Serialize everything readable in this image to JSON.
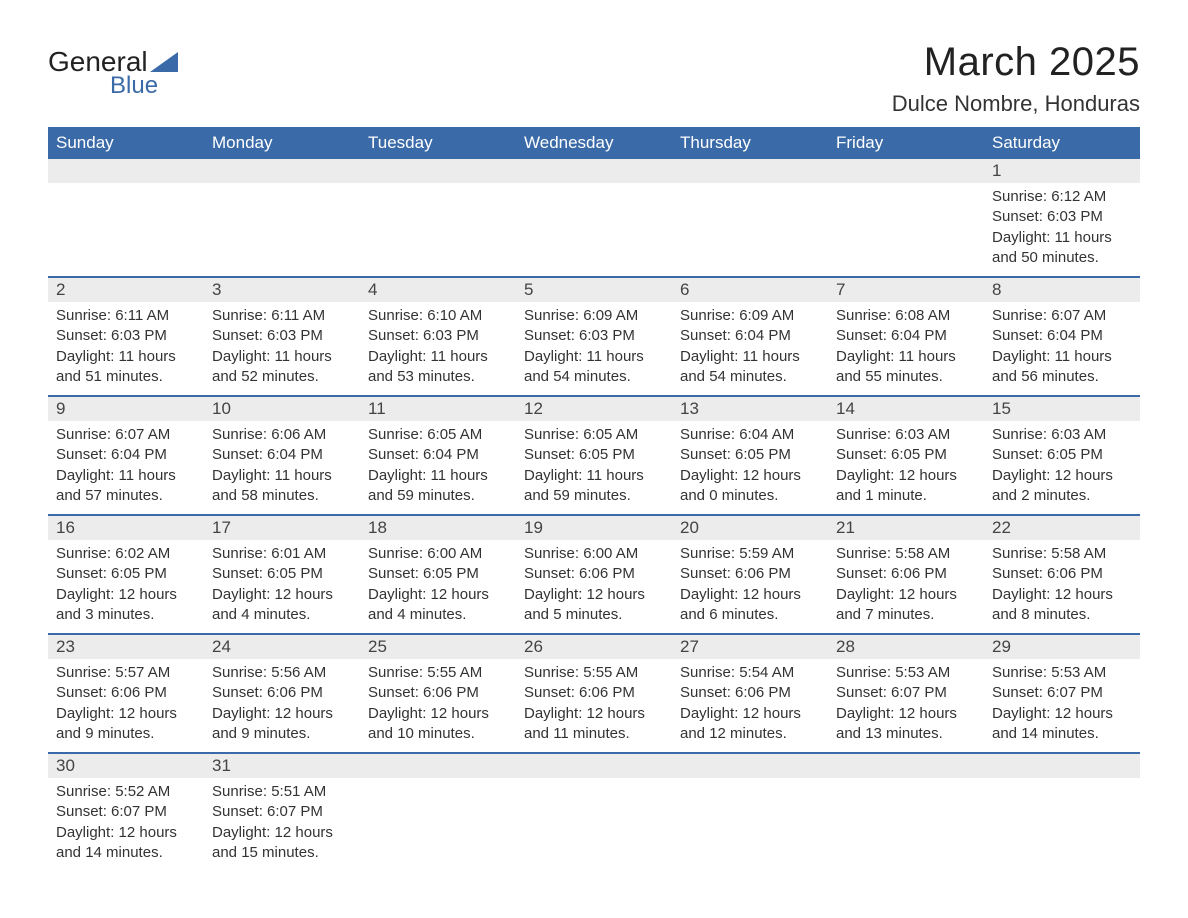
{
  "logo": {
    "line1": "General",
    "line2": "Blue"
  },
  "title": "March 2025",
  "location": "Dulce Nombre, Honduras",
  "colors": {
    "header_bg": "#3a6aa8",
    "header_text": "#ffffff",
    "daynum_bg": "#ececec",
    "border": "#3a6aa8",
    "body_text": "#333333"
  },
  "columns": [
    "Sunday",
    "Monday",
    "Tuesday",
    "Wednesday",
    "Thursday",
    "Friday",
    "Saturday"
  ],
  "weeks": [
    {
      "days": [
        null,
        null,
        null,
        null,
        null,
        null,
        {
          "n": "1",
          "sunrise": "6:12 AM",
          "sunset": "6:03 PM",
          "daylight": "11 hours and 50 minutes."
        }
      ]
    },
    {
      "days": [
        {
          "n": "2",
          "sunrise": "6:11 AM",
          "sunset": "6:03 PM",
          "daylight": "11 hours and 51 minutes."
        },
        {
          "n": "3",
          "sunrise": "6:11 AM",
          "sunset": "6:03 PM",
          "daylight": "11 hours and 52 minutes."
        },
        {
          "n": "4",
          "sunrise": "6:10 AM",
          "sunset": "6:03 PM",
          "daylight": "11 hours and 53 minutes."
        },
        {
          "n": "5",
          "sunrise": "6:09 AM",
          "sunset": "6:03 PM",
          "daylight": "11 hours and 54 minutes."
        },
        {
          "n": "6",
          "sunrise": "6:09 AM",
          "sunset": "6:04 PM",
          "daylight": "11 hours and 54 minutes."
        },
        {
          "n": "7",
          "sunrise": "6:08 AM",
          "sunset": "6:04 PM",
          "daylight": "11 hours and 55 minutes."
        },
        {
          "n": "8",
          "sunrise": "6:07 AM",
          "sunset": "6:04 PM",
          "daylight": "11 hours and 56 minutes."
        }
      ]
    },
    {
      "days": [
        {
          "n": "9",
          "sunrise": "6:07 AM",
          "sunset": "6:04 PM",
          "daylight": "11 hours and 57 minutes."
        },
        {
          "n": "10",
          "sunrise": "6:06 AM",
          "sunset": "6:04 PM",
          "daylight": "11 hours and 58 minutes."
        },
        {
          "n": "11",
          "sunrise": "6:05 AM",
          "sunset": "6:04 PM",
          "daylight": "11 hours and 59 minutes."
        },
        {
          "n": "12",
          "sunrise": "6:05 AM",
          "sunset": "6:05 PM",
          "daylight": "11 hours and 59 minutes."
        },
        {
          "n": "13",
          "sunrise": "6:04 AM",
          "sunset": "6:05 PM",
          "daylight": "12 hours and 0 minutes."
        },
        {
          "n": "14",
          "sunrise": "6:03 AM",
          "sunset": "6:05 PM",
          "daylight": "12 hours and 1 minute."
        },
        {
          "n": "15",
          "sunrise": "6:03 AM",
          "sunset": "6:05 PM",
          "daylight": "12 hours and 2 minutes."
        }
      ]
    },
    {
      "days": [
        {
          "n": "16",
          "sunrise": "6:02 AM",
          "sunset": "6:05 PM",
          "daylight": "12 hours and 3 minutes."
        },
        {
          "n": "17",
          "sunrise": "6:01 AM",
          "sunset": "6:05 PM",
          "daylight": "12 hours and 4 minutes."
        },
        {
          "n": "18",
          "sunrise": "6:00 AM",
          "sunset": "6:05 PM",
          "daylight": "12 hours and 4 minutes."
        },
        {
          "n": "19",
          "sunrise": "6:00 AM",
          "sunset": "6:06 PM",
          "daylight": "12 hours and 5 minutes."
        },
        {
          "n": "20",
          "sunrise": "5:59 AM",
          "sunset": "6:06 PM",
          "daylight": "12 hours and 6 minutes."
        },
        {
          "n": "21",
          "sunrise": "5:58 AM",
          "sunset": "6:06 PM",
          "daylight": "12 hours and 7 minutes."
        },
        {
          "n": "22",
          "sunrise": "5:58 AM",
          "sunset": "6:06 PM",
          "daylight": "12 hours and 8 minutes."
        }
      ]
    },
    {
      "days": [
        {
          "n": "23",
          "sunrise": "5:57 AM",
          "sunset": "6:06 PM",
          "daylight": "12 hours and 9 minutes."
        },
        {
          "n": "24",
          "sunrise": "5:56 AM",
          "sunset": "6:06 PM",
          "daylight": "12 hours and 9 minutes."
        },
        {
          "n": "25",
          "sunrise": "5:55 AM",
          "sunset": "6:06 PM",
          "daylight": "12 hours and 10 minutes."
        },
        {
          "n": "26",
          "sunrise": "5:55 AM",
          "sunset": "6:06 PM",
          "daylight": "12 hours and 11 minutes."
        },
        {
          "n": "27",
          "sunrise": "5:54 AM",
          "sunset": "6:06 PM",
          "daylight": "12 hours and 12 minutes."
        },
        {
          "n": "28",
          "sunrise": "5:53 AM",
          "sunset": "6:07 PM",
          "daylight": "12 hours and 13 minutes."
        },
        {
          "n": "29",
          "sunrise": "5:53 AM",
          "sunset": "6:07 PM",
          "daylight": "12 hours and 14 minutes."
        }
      ]
    },
    {
      "days": [
        {
          "n": "30",
          "sunrise": "5:52 AM",
          "sunset": "6:07 PM",
          "daylight": "12 hours and 14 minutes."
        },
        {
          "n": "31",
          "sunrise": "5:51 AM",
          "sunset": "6:07 PM",
          "daylight": "12 hours and 15 minutes."
        },
        null,
        null,
        null,
        null,
        null
      ]
    }
  ],
  "labels": {
    "sunrise": "Sunrise: ",
    "sunset": "Sunset: ",
    "daylight": "Daylight: "
  }
}
